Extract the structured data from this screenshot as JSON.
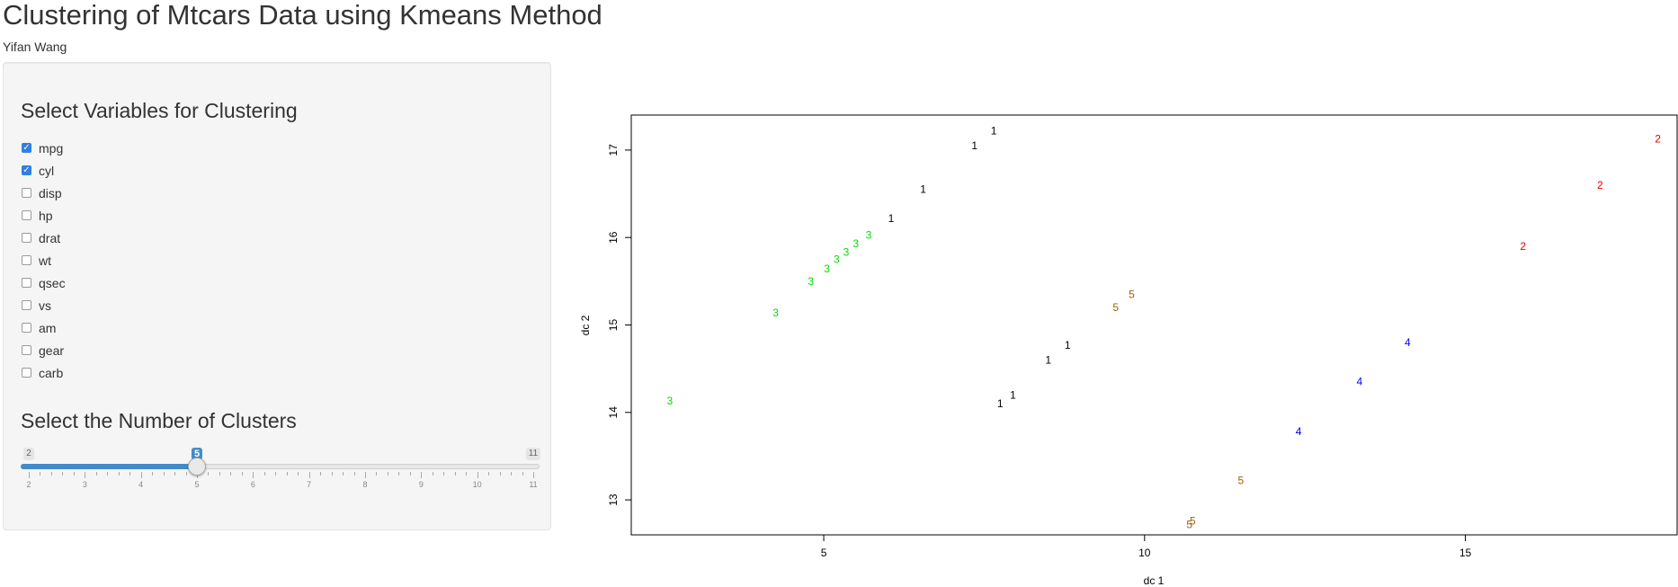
{
  "app": {
    "title": "Clustering of Mtcars Data using Kmeans Method",
    "author": "Yifan Wang"
  },
  "sidebar": {
    "variables_title": "Select Variables for Clustering",
    "variables": [
      {
        "label": "mpg",
        "checked": true
      },
      {
        "label": "cyl",
        "checked": true
      },
      {
        "label": "disp",
        "checked": false
      },
      {
        "label": "hp",
        "checked": false
      },
      {
        "label": "drat",
        "checked": false
      },
      {
        "label": "wt",
        "checked": false
      },
      {
        "label": "qsec",
        "checked": false
      },
      {
        "label": "vs",
        "checked": false
      },
      {
        "label": "am",
        "checked": false
      },
      {
        "label": "gear",
        "checked": false
      },
      {
        "label": "carb",
        "checked": false
      }
    ],
    "clusters_title": "Select the Number of Clusters",
    "slider": {
      "min": 2,
      "max": 11,
      "value": 5
    }
  },
  "chart_data": {
    "type": "scatter",
    "xlabel": "dc 1",
    "ylabel": "dc 2",
    "xlim": [
      2,
      18.3
    ],
    "ylim": [
      12.6,
      17.4
    ],
    "xticks": [
      5,
      10,
      15
    ],
    "yticks": [
      13,
      14,
      15,
      16,
      17
    ],
    "colors": {
      "1": "#000000",
      "2": "#e00000",
      "3": "#00dd00",
      "4": "#0000ee",
      "5": "#a0620a"
    },
    "points": [
      {
        "x": 7.65,
        "y": 17.22,
        "label": "1"
      },
      {
        "x": 7.35,
        "y": 17.05,
        "label": "1"
      },
      {
        "x": 6.55,
        "y": 16.55,
        "label": "1"
      },
      {
        "x": 6.05,
        "y": 16.22,
        "label": "1"
      },
      {
        "x": 8.8,
        "y": 14.77,
        "label": "1"
      },
      {
        "x": 8.5,
        "y": 14.6,
        "label": "1"
      },
      {
        "x": 7.95,
        "y": 14.2,
        "label": "1"
      },
      {
        "x": 7.75,
        "y": 14.1,
        "label": "1"
      },
      {
        "x": 18.0,
        "y": 17.13,
        "label": "2"
      },
      {
        "x": 17.1,
        "y": 16.6,
        "label": "2"
      },
      {
        "x": 15.9,
        "y": 15.9,
        "label": "2"
      },
      {
        "x": 2.6,
        "y": 14.13,
        "label": "3"
      },
      {
        "x": 4.25,
        "y": 15.14,
        "label": "3"
      },
      {
        "x": 4.8,
        "y": 15.5,
        "label": "3"
      },
      {
        "x": 5.05,
        "y": 15.64,
        "label": "3"
      },
      {
        "x": 5.2,
        "y": 15.75,
        "label": "3"
      },
      {
        "x": 5.35,
        "y": 15.83,
        "label": "3"
      },
      {
        "x": 5.5,
        "y": 15.93,
        "label": "3"
      },
      {
        "x": 5.7,
        "y": 16.03,
        "label": "3"
      },
      {
        "x": 14.1,
        "y": 14.8,
        "label": "4"
      },
      {
        "x": 13.35,
        "y": 14.35,
        "label": "4"
      },
      {
        "x": 12.4,
        "y": 13.78,
        "label": "4"
      },
      {
        "x": 9.8,
        "y": 15.35,
        "label": "5"
      },
      {
        "x": 9.55,
        "y": 15.2,
        "label": "5"
      },
      {
        "x": 11.5,
        "y": 13.22,
        "label": "5"
      },
      {
        "x": 10.75,
        "y": 12.76,
        "label": "5"
      },
      {
        "x": 10.7,
        "y": 12.72,
        "label": "5"
      }
    ]
  }
}
